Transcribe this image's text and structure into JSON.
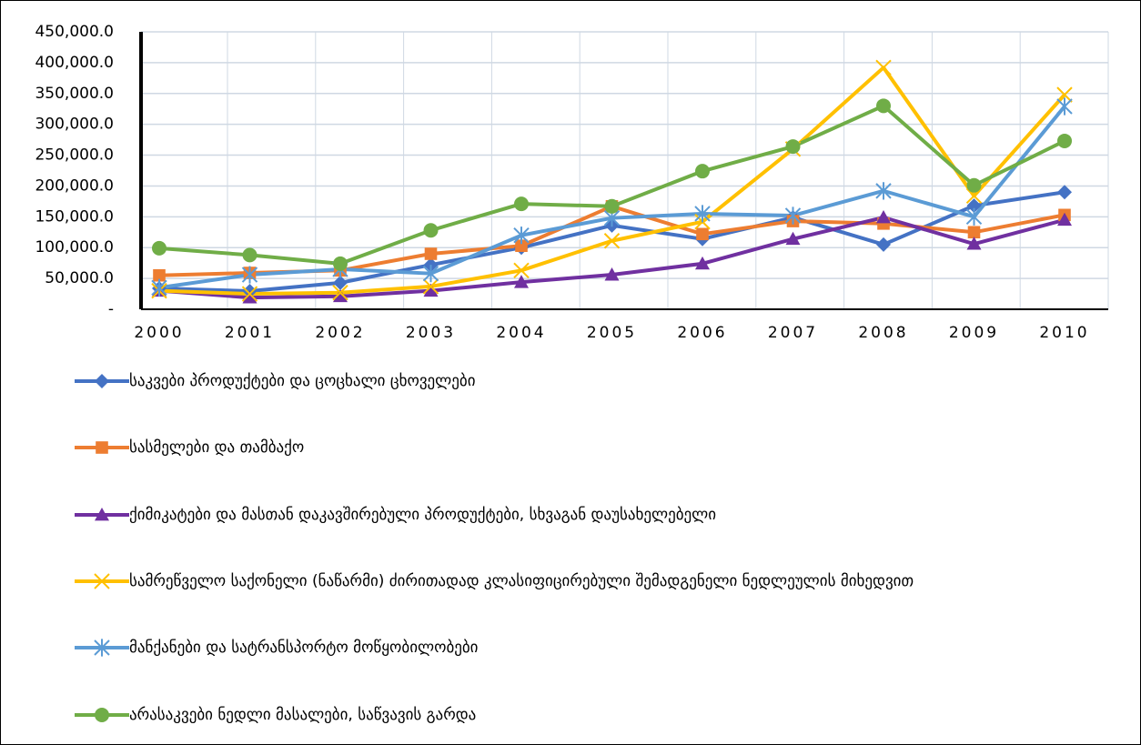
{
  "chart_data": {
    "type": "line",
    "categories": [
      "2000",
      "2001",
      "2002",
      "2003",
      "2004",
      "2005",
      "2006",
      "2007",
      "2008",
      "2009",
      "2010"
    ],
    "series": [
      {
        "name": "საკვები პროდუქტები და ცოცხალი ცხოველები",
        "color": "#4472c4",
        "marker": "diamond",
        "values": [
          34000,
          29500,
          43000,
          72000,
          100000,
          136000,
          114000,
          149000,
          105000,
          168000,
          190000
        ]
      },
      {
        "name": "სასმელები და თამბაქო",
        "color": "#ed7d31",
        "marker": "square",
        "values": [
          55000,
          59000,
          63000,
          90000,
          103000,
          167000,
          122000,
          143000,
          139000,
          125000,
          153000
        ]
      },
      {
        "name": "ქიმიკატები და მასთან დაკავშირებული პროდუქტები, სხვაგან დაუსახელებელი",
        "color": "#7030a0",
        "marker": "triangle",
        "values": [
          30000,
          19000,
          21000,
          30000,
          44000,
          56000,
          74000,
          114000,
          149000,
          106000,
          145000
        ]
      },
      {
        "name": "სამრეწველო საქონელი (ნაწარმი) ძირითადად კლასიფიცირებული შემადგენელი ნედლეულის მიხედვით",
        "color": "#ffc000",
        "marker": "x",
        "values": [
          30000,
          25000,
          27000,
          37000,
          63000,
          111000,
          142000,
          260000,
          392000,
          184000,
          348000
        ]
      },
      {
        "name": "მანქანები და სატრანსპორტო მოწყობილობები",
        "color": "#5b9bd5",
        "marker": "star",
        "values": [
          35000,
          56000,
          65000,
          58000,
          120000,
          148000,
          155000,
          152000,
          192000,
          150000,
          329000
        ]
      },
      {
        "name": "არასაკვები ნედლი მასალები, საწვავის გარდა",
        "color": "#70ad47",
        "marker": "circle",
        "values": [
          99000,
          88000,
          74000,
          128000,
          171000,
          167000,
          224000,
          264000,
          330000,
          201000,
          273000
        ]
      }
    ],
    "ylim": [
      0,
      450000
    ],
    "yticks": [
      {
        "value": 0,
        "label": "-"
      },
      {
        "value": 50000,
        "label": "50,000.0"
      },
      {
        "value": 100000,
        "label": "100,000.0"
      },
      {
        "value": 150000,
        "label": "150,000.0"
      },
      {
        "value": 200000,
        "label": "200,000.0"
      },
      {
        "value": 250000,
        "label": "250,000.0"
      },
      {
        "value": 300000,
        "label": "300,000.0"
      },
      {
        "value": 350000,
        "label": "350,000.0"
      },
      {
        "value": 400000,
        "label": "400,000.0"
      },
      {
        "value": 450000,
        "label": "450,000.0"
      }
    ],
    "grid": true,
    "legend": "bottom"
  }
}
